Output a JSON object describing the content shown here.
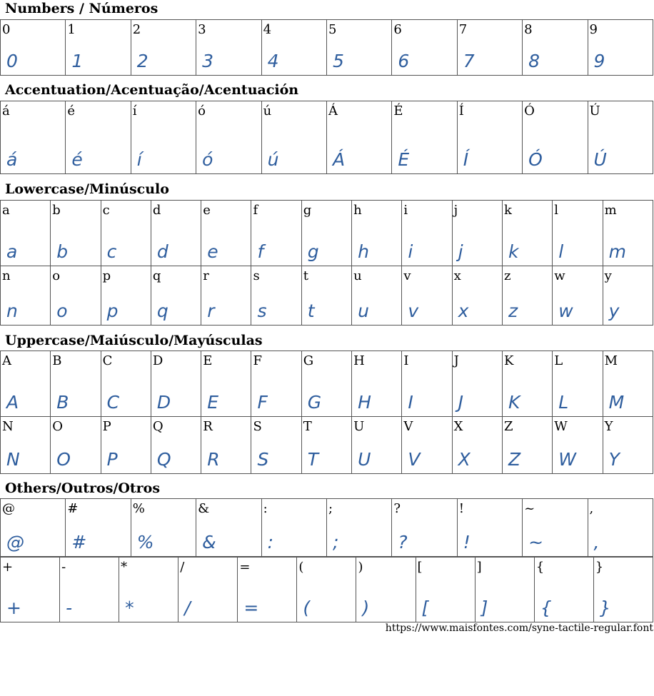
{
  "glyph_color": "#2f5e9e",
  "sections": [
    {
      "title": "Numbers / Números",
      "rows": [
        [
          "0",
          "1",
          "2",
          "3",
          "4",
          "5",
          "6",
          "7",
          "8",
          "9"
        ]
      ]
    },
    {
      "title": "Accentuation/Acentuação/Acentuación",
      "rows": [
        [
          "á",
          "é",
          "í",
          "ó",
          "ú",
          "Á",
          "É",
          "Í",
          "Ó",
          "Ú"
        ]
      ]
    },
    {
      "title": "Lowercase/Minúsculo",
      "rows": [
        [
          "a",
          "b",
          "c",
          "d",
          "e",
          "f",
          "g",
          "h",
          "i",
          "j",
          "k",
          "l",
          "m"
        ],
        [
          "n",
          "o",
          "p",
          "q",
          "r",
          "s",
          "t",
          "u",
          "v",
          "x",
          "z",
          "w",
          "y"
        ]
      ]
    },
    {
      "title": "Uppercase/Maiúsculo/Mayúsculas",
      "rows": [
        [
          "A",
          "B",
          "C",
          "D",
          "E",
          "F",
          "G",
          "H",
          "I",
          "J",
          "K",
          "L",
          "M"
        ],
        [
          "N",
          "O",
          "P",
          "Q",
          "R",
          "S",
          "T",
          "U",
          "V",
          "X",
          "Z",
          "W",
          "Y"
        ]
      ]
    },
    {
      "title": "Others/Outros/Otros",
      "rows": [
        [
          "@",
          "#",
          "%",
          "&",
          ":",
          ";",
          "?",
          "!",
          "~",
          ","
        ],
        [
          "+",
          "-",
          "*",
          "/",
          "=",
          "(",
          ")",
          "[",
          "]",
          "{",
          "}"
        ]
      ]
    }
  ],
  "footer": "https://www.maisfontes.com/syne-tactile-regular.font"
}
